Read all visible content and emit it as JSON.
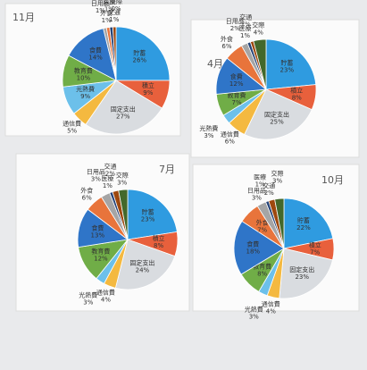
{
  "chart_data": [
    {
      "type": "pie",
      "title": "11月",
      "categories": [
        "貯蓄",
        "積立",
        "固定支出",
        "通信費",
        "光熱費",
        "教育費",
        "食費",
        "日用品",
        "外食",
        "医療",
        "交通",
        "交際"
      ],
      "values": [
        26,
        9,
        27,
        5,
        9,
        10,
        14,
        1,
        1,
        1,
        1,
        0
      ],
      "value_labels": [
        "26%",
        "9%",
        "27%",
        "5%",
        "9%",
        "10%",
        "14%",
        "1%",
        "1%",
        "1%",
        "1%",
        "0%"
      ],
      "colors": [
        "#2f9be0",
        "#e8603c",
        "#d9dce0",
        "#f4b940",
        "#6cc0ea",
        "#70ad47",
        "#2f75c8",
        "#a5a5a5",
        "#e8743b",
        "#264478",
        "#9e480e",
        "#43682b"
      ]
    },
    {
      "type": "pie",
      "title": "4月",
      "categories": [
        "貯蓄",
        "積立",
        "固定支出",
        "通信費",
        "光熱費",
        "教育費",
        "食費",
        "外食",
        "日用品",
        "医療",
        "交通",
        "交際"
      ],
      "values": [
        23,
        8,
        25,
        6,
        3,
        7,
        12,
        6,
        2,
        1,
        1,
        4
      ],
      "value_labels": [
        "23%",
        "8%",
        "25%",
        "6%",
        "3%",
        "7%",
        "12%",
        "6%",
        "2%",
        "1%",
        "1%",
        "4%"
      ],
      "colors": [
        "#2f9be0",
        "#e8603c",
        "#d9dce0",
        "#f4b940",
        "#6cc0ea",
        "#70ad47",
        "#2f75c8",
        "#e8743b",
        "#a5a5a5",
        "#264478",
        "#9e480e",
        "#43682b"
      ]
    },
    {
      "type": "pie",
      "title": "7月",
      "categories": [
        "貯蓄",
        "積立",
        "固定支出",
        "通信費",
        "光熱費",
        "教育費",
        "食費",
        "外食",
        "日用品",
        "医療",
        "交通",
        "交際"
      ],
      "values": [
        23,
        8,
        24,
        4,
        3,
        12,
        13,
        6,
        3,
        1,
        2,
        3
      ],
      "value_labels": [
        "23%",
        "8%",
        "24%",
        "4%",
        "3%",
        "12%",
        "13%",
        "6%",
        "3%",
        "1%",
        "2%",
        "3%"
      ],
      "colors": [
        "#2f9be0",
        "#e8603c",
        "#d9dce0",
        "#f4b940",
        "#6cc0ea",
        "#70ad47",
        "#2f75c8",
        "#e8743b",
        "#a5a5a5",
        "#264478",
        "#9e480e",
        "#43682b"
      ]
    },
    {
      "type": "pie",
      "title": "10月",
      "categories": [
        "貯蓄",
        "積立",
        "固定支出",
        "通信費",
        "光熱費",
        "教育費",
        "食費",
        "外食",
        "日用品",
        "医療",
        "交通",
        "交際"
      ],
      "values": [
        22,
        7,
        23,
        4,
        3,
        8,
        18,
        7,
        3,
        1,
        2,
        3
      ],
      "value_labels": [
        "22%",
        "7%",
        "23%",
        "4%",
        "3%",
        "8%",
        "18%",
        "7%",
        "3%",
        "1%",
        "2%",
        "3%"
      ],
      "colors": [
        "#2f9be0",
        "#e8603c",
        "#d9dce0",
        "#f4b940",
        "#6cc0ea",
        "#70ad47",
        "#2f75c8",
        "#e8743b",
        "#a5a5a5",
        "#264478",
        "#9e480e",
        "#43682b"
      ]
    }
  ]
}
